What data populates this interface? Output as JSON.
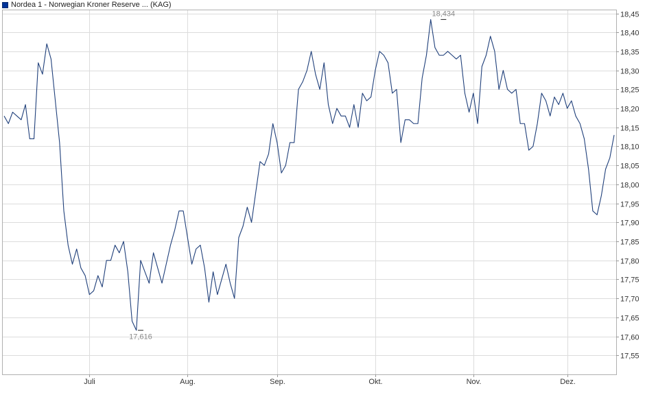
{
  "legend": {
    "label": "Nordea 1 - Norwegian Kroner Reserve ... (KAG)",
    "color": "#003399"
  },
  "chart_data": {
    "type": "line",
    "title": "",
    "xlabel": "",
    "ylabel": "",
    "ylim": [
      17.5,
      18.46
    ],
    "grid": true,
    "y_ticks": [
      "18,45",
      "18,40",
      "18,35",
      "18,30",
      "18,25",
      "18,20",
      "18,15",
      "18,10",
      "18,05",
      "18,00",
      "17,95",
      "17,90",
      "17,85",
      "17,80",
      "17,75",
      "17,70",
      "17,65",
      "17,60",
      "17,55"
    ],
    "x_ticks": [
      {
        "label": "Juli",
        "index": 20
      },
      {
        "label": "Aug.",
        "index": 43
      },
      {
        "label": "Sep.",
        "index": 64
      },
      {
        "label": "Okt.",
        "index": 87
      },
      {
        "label": "Nov.",
        "index": 110
      },
      {
        "label": "Dez.",
        "index": 132
      }
    ],
    "annotations": [
      {
        "label": "18,434",
        "index": 103,
        "value": 18.434,
        "position": "above"
      },
      {
        "label": "17,616",
        "index": 32,
        "value": 17.616,
        "position": "below"
      }
    ],
    "series": [
      {
        "color": "#1f3f7a",
        "values": [
          18.18,
          18.16,
          18.19,
          18.18,
          18.17,
          18.21,
          18.12,
          18.12,
          18.32,
          18.29,
          18.37,
          18.33,
          18.22,
          18.11,
          17.93,
          17.84,
          17.79,
          17.83,
          17.78,
          17.76,
          17.71,
          17.72,
          17.76,
          17.73,
          17.8,
          17.8,
          17.84,
          17.82,
          17.85,
          17.77,
          17.64,
          17.616,
          17.8,
          17.77,
          17.74,
          17.82,
          17.78,
          17.74,
          17.79,
          17.84,
          17.88,
          17.93,
          17.93,
          17.86,
          17.79,
          17.83,
          17.84,
          17.78,
          17.69,
          17.77,
          17.71,
          17.75,
          17.79,
          17.74,
          17.7,
          17.86,
          17.89,
          17.94,
          17.9,
          17.98,
          18.06,
          18.05,
          18.08,
          18.16,
          18.11,
          18.03,
          18.05,
          18.11,
          18.11,
          18.25,
          18.27,
          18.3,
          18.35,
          18.29,
          18.25,
          18.32,
          18.21,
          18.16,
          18.2,
          18.18,
          18.18,
          18.15,
          18.21,
          18.15,
          18.24,
          18.22,
          18.23,
          18.3,
          18.35,
          18.34,
          18.32,
          18.24,
          18.25,
          18.11,
          18.17,
          18.17,
          18.16,
          18.16,
          18.28,
          18.34,
          18.434,
          18.36,
          18.34,
          18.34,
          18.35,
          18.34,
          18.33,
          18.34,
          18.24,
          18.19,
          18.24,
          18.16,
          18.31,
          18.34,
          18.39,
          18.35,
          18.25,
          18.3,
          18.25,
          18.24,
          18.25,
          18.16,
          18.16,
          18.09,
          18.1,
          18.16,
          18.24,
          18.22,
          18.18,
          18.23,
          18.21,
          18.24,
          18.2,
          18.22,
          18.18,
          18.16,
          18.12,
          18.04,
          17.93,
          17.92,
          17.97,
          18.04,
          18.07,
          18.13
        ]
      }
    ]
  }
}
